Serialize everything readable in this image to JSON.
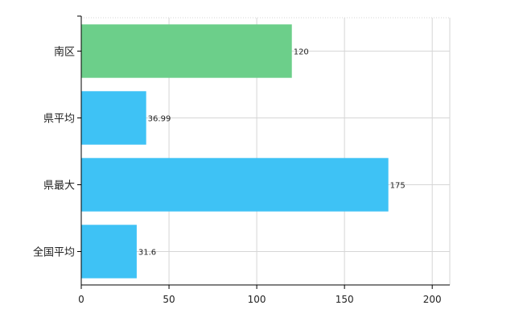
{
  "chart_data": {
    "type": "bar",
    "orientation": "horizontal",
    "categories": [
      "南区",
      "県平均",
      "県最大",
      "全国平均"
    ],
    "values": [
      120,
      36.99,
      175,
      31.6
    ],
    "value_labels": [
      "120",
      "36.99",
      "175",
      "31.6"
    ],
    "bar_colors": [
      "#6ccf8a",
      "#3ec2f5",
      "#3ec2f5",
      "#3ec2f5"
    ],
    "xlim": [
      0,
      210
    ],
    "x_ticks": [
      0,
      50,
      100,
      150,
      200
    ],
    "x_tick_labels": [
      "0",
      "50",
      "100",
      "150",
      "200"
    ],
    "grid": true,
    "title": "",
    "xlabel": "",
    "ylabel": ""
  }
}
